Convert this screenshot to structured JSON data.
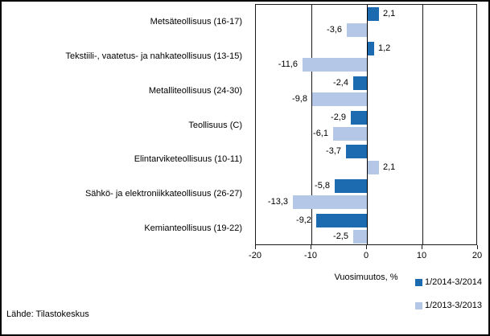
{
  "chart_data": {
    "type": "bar",
    "orientation": "horizontal",
    "title": "",
    "xlabel": "Vuosimuutos, %",
    "xlim": [
      -20,
      20
    ],
    "xticks": [
      -20,
      -10,
      0,
      10,
      20
    ],
    "grid": "vertical",
    "legend_position": "bottom-right",
    "categories": [
      "Metsäteollisuus (16-17)",
      "Tekstiili-, vaatetus- ja nahkateollisuus (13-15)",
      "Metalliteollisuus (24-30)",
      "Teollisuus (C)",
      "Elintarviketeollisuus (10-11)",
      "Sähkö- ja elektroniikkateollisuus (26-27)",
      "Kemianteollisuus (19-22)"
    ],
    "series": [
      {
        "name": "1/2014-3/2014",
        "color": "#1c6bb0",
        "values": [
          2.1,
          1.2,
          -2.4,
          -2.9,
          -3.7,
          -5.8,
          -9.2
        ],
        "labels": [
          "2,1",
          "1,2",
          "-2,4",
          "-2,9",
          "-3,7",
          "-5,8",
          "-9,2"
        ]
      },
      {
        "name": "1/2013-3/2013",
        "color": "#b4c7e7",
        "values": [
          -3.6,
          -11.6,
          -9.8,
          -6.1,
          2.1,
          -13.3,
          -2.5
        ],
        "labels": [
          "-3,6",
          "-11,6",
          "-9,8",
          "-6,1",
          "2,1",
          "-13,3",
          "-2,5"
        ]
      }
    ]
  },
  "footer": {
    "source": "Lähde: Tilastokeskus"
  },
  "colors": {
    "background": "#ffffff",
    "border": "#000000",
    "axis": "#1a1a1a",
    "text": "#000000"
  }
}
